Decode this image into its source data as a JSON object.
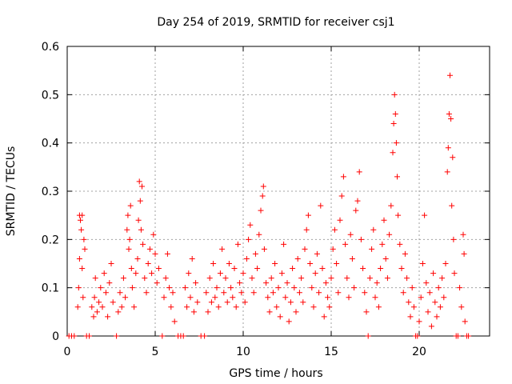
{
  "chart_data": {
    "type": "scatter",
    "title": "Day 254 of 2019, SRMTID for receiver csj1",
    "xlabel": "GPS time / hours",
    "ylabel": "SRMTID / TECUs",
    "xlim": [
      0,
      24
    ],
    "ylim": [
      0,
      0.6
    ],
    "xticks": [
      0,
      5,
      10,
      15,
      20
    ],
    "yticks": [
      0,
      0.1,
      0.2,
      0.3,
      0.4,
      0.5,
      0.6
    ],
    "xtick_labels": [
      "0",
      "5",
      "10",
      "15",
      "20"
    ],
    "ytick_labels": [
      "0",
      "0.1",
      "0.2",
      "0.3",
      "0.4",
      "0.5",
      "0.6"
    ],
    "grid": true,
    "marker": "+",
    "color": "#ff0000",
    "series": [
      {
        "name": "SRMTID",
        "points": [
          [
            0.1,
            0.0
          ],
          [
            0.25,
            0.0
          ],
          [
            0.4,
            0.0
          ],
          [
            0.6,
            0.06
          ],
          [
            0.65,
            0.1
          ],
          [
            0.7,
            0.16
          ],
          [
            0.75,
            0.24
          ],
          [
            0.8,
            0.22
          ],
          [
            0.85,
            0.14
          ],
          [
            0.9,
            0.08
          ],
          [
            0.95,
            0.2
          ],
          [
            1.0,
            0.18
          ],
          [
            0.7,
            0.25
          ],
          [
            0.85,
            0.25
          ],
          [
            1.1,
            0.0
          ],
          [
            1.25,
            0.0
          ],
          [
            1.4,
            0.06
          ],
          [
            1.5,
            0.04
          ],
          [
            1.55,
            0.08
          ],
          [
            1.6,
            0.12
          ],
          [
            1.7,
            0.05
          ],
          [
            1.8,
            0.07
          ],
          [
            1.9,
            0.1
          ],
          [
            2.0,
            0.06
          ],
          [
            2.1,
            0.13
          ],
          [
            2.2,
            0.09
          ],
          [
            2.3,
            0.04
          ],
          [
            2.4,
            0.11
          ],
          [
            2.5,
            0.15
          ],
          [
            2.6,
            0.07
          ],
          [
            2.8,
            0.0
          ],
          [
            2.9,
            0.05
          ],
          [
            3.0,
            0.09
          ],
          [
            3.1,
            0.06
          ],
          [
            3.2,
            0.12
          ],
          [
            3.3,
            0.08
          ],
          [
            3.4,
            0.22
          ],
          [
            3.45,
            0.25
          ],
          [
            3.5,
            0.18
          ],
          [
            3.55,
            0.2
          ],
          [
            3.6,
            0.27
          ],
          [
            3.65,
            0.14
          ],
          [
            3.7,
            0.1
          ],
          [
            3.8,
            0.06
          ],
          [
            3.9,
            0.13
          ],
          [
            4.0,
            0.16
          ],
          [
            4.05,
            0.24
          ],
          [
            4.1,
            0.32
          ],
          [
            4.15,
            0.28
          ],
          [
            4.2,
            0.22
          ],
          [
            4.25,
            0.31
          ],
          [
            4.3,
            0.19
          ],
          [
            4.4,
            0.12
          ],
          [
            4.5,
            0.09
          ],
          [
            4.6,
            0.15
          ],
          [
            4.7,
            0.18
          ],
          [
            4.8,
            0.13
          ],
          [
            4.9,
            0.21
          ],
          [
            5.0,
            0.17
          ],
          [
            5.1,
            0.11
          ],
          [
            5.2,
            0.14
          ],
          [
            5.4,
            0.0
          ],
          [
            5.5,
            0.08
          ],
          [
            5.6,
            0.12
          ],
          [
            5.7,
            0.17
          ],
          [
            5.8,
            0.1
          ],
          [
            5.9,
            0.06
          ],
          [
            6.0,
            0.09
          ],
          [
            6.1,
            0.03
          ],
          [
            6.3,
            0.0
          ],
          [
            6.45,
            0.0
          ],
          [
            6.6,
            0.0
          ],
          [
            6.7,
            0.1
          ],
          [
            6.8,
            0.06
          ],
          [
            6.9,
            0.13
          ],
          [
            7.0,
            0.08
          ],
          [
            7.1,
            0.16
          ],
          [
            7.2,
            0.05
          ],
          [
            7.3,
            0.11
          ],
          [
            7.4,
            0.07
          ],
          [
            7.6,
            0.0
          ],
          [
            7.8,
            0.0
          ],
          [
            7.9,
            0.09
          ],
          [
            8.0,
            0.05
          ],
          [
            8.1,
            0.12
          ],
          [
            8.2,
            0.07
          ],
          [
            8.3,
            0.15
          ],
          [
            8.4,
            0.08
          ],
          [
            8.5,
            0.1
          ],
          [
            8.6,
            0.06
          ],
          [
            8.7,
            0.13
          ],
          [
            8.8,
            0.18
          ],
          [
            8.9,
            0.09
          ],
          [
            9.0,
            0.12
          ],
          [
            9.1,
            0.07
          ],
          [
            9.2,
            0.15
          ],
          [
            9.3,
            0.1
          ],
          [
            9.4,
            0.08
          ],
          [
            9.5,
            0.14
          ],
          [
            9.6,
            0.06
          ],
          [
            9.7,
            0.19
          ],
          [
            9.8,
            0.11
          ],
          [
            9.9,
            0.09
          ],
          [
            10.0,
            0.13
          ],
          [
            10.1,
            0.07
          ],
          [
            10.2,
            0.16
          ],
          [
            10.3,
            0.2
          ],
          [
            10.4,
            0.23
          ],
          [
            10.5,
            0.12
          ],
          [
            10.6,
            0.09
          ],
          [
            10.7,
            0.17
          ],
          [
            10.8,
            0.14
          ],
          [
            10.9,
            0.21
          ],
          [
            11.0,
            0.26
          ],
          [
            11.1,
            0.29
          ],
          [
            11.15,
            0.31
          ],
          [
            11.2,
            0.18
          ],
          [
            11.3,
            0.11
          ],
          [
            11.4,
            0.08
          ],
          [
            11.5,
            0.05
          ],
          [
            11.6,
            0.12
          ],
          [
            11.7,
            0.09
          ],
          [
            11.8,
            0.15
          ],
          [
            11.9,
            0.06
          ],
          [
            12.0,
            0.1
          ],
          [
            12.1,
            0.04
          ],
          [
            12.2,
            0.13
          ],
          [
            12.3,
            0.19
          ],
          [
            12.4,
            0.08
          ],
          [
            12.5,
            0.11
          ],
          [
            12.6,
            0.03
          ],
          [
            12.7,
            0.07
          ],
          [
            12.8,
            0.14
          ],
          [
            12.9,
            0.1
          ],
          [
            13.0,
            0.05
          ],
          [
            13.1,
            0.16
          ],
          [
            13.2,
            0.09
          ],
          [
            13.3,
            0.12
          ],
          [
            13.4,
            0.07
          ],
          [
            13.5,
            0.18
          ],
          [
            13.6,
            0.22
          ],
          [
            13.7,
            0.25
          ],
          [
            13.8,
            0.15
          ],
          [
            13.9,
            0.1
          ],
          [
            14.0,
            0.06
          ],
          [
            14.1,
            0.13
          ],
          [
            14.2,
            0.17
          ],
          [
            14.3,
            0.09
          ],
          [
            14.4,
            0.27
          ],
          [
            14.5,
            0.14
          ],
          [
            14.6,
            0.04
          ],
          [
            14.7,
            0.11
          ],
          [
            14.8,
            0.08
          ],
          [
            14.9,
            0.06
          ],
          [
            15.0,
            0.12
          ],
          [
            15.1,
            0.18
          ],
          [
            15.2,
            0.22
          ],
          [
            15.3,
            0.15
          ],
          [
            15.4,
            0.09
          ],
          [
            15.5,
            0.24
          ],
          [
            15.6,
            0.29
          ],
          [
            15.7,
            0.33
          ],
          [
            15.8,
            0.19
          ],
          [
            15.9,
            0.12
          ],
          [
            16.0,
            0.08
          ],
          [
            16.1,
            0.21
          ],
          [
            16.2,
            0.16
          ],
          [
            16.3,
            0.1
          ],
          [
            16.4,
            0.26
          ],
          [
            16.5,
            0.28
          ],
          [
            16.6,
            0.34
          ],
          [
            16.7,
            0.2
          ],
          [
            16.8,
            0.14
          ],
          [
            16.9,
            0.09
          ],
          [
            17.0,
            0.05
          ],
          [
            17.1,
            0.0
          ],
          [
            17.2,
            0.12
          ],
          [
            17.3,
            0.18
          ],
          [
            17.4,
            0.22
          ],
          [
            17.5,
            0.08
          ],
          [
            17.6,
            0.11
          ],
          [
            17.7,
            0.06
          ],
          [
            17.8,
            0.14
          ],
          [
            17.9,
            0.19
          ],
          [
            18.0,
            0.24
          ],
          [
            18.1,
            0.16
          ],
          [
            18.2,
            0.12
          ],
          [
            18.3,
            0.21
          ],
          [
            18.4,
            0.27
          ],
          [
            18.5,
            0.38
          ],
          [
            18.55,
            0.44
          ],
          [
            18.6,
            0.5
          ],
          [
            18.65,
            0.46
          ],
          [
            18.7,
            0.4
          ],
          [
            18.75,
            0.33
          ],
          [
            18.8,
            0.25
          ],
          [
            18.9,
            0.19
          ],
          [
            19.0,
            0.14
          ],
          [
            19.1,
            0.09
          ],
          [
            19.2,
            0.17
          ],
          [
            19.3,
            0.12
          ],
          [
            19.4,
            0.07
          ],
          [
            19.5,
            0.04
          ],
          [
            19.6,
            0.1
          ],
          [
            19.7,
            0.06
          ],
          [
            19.8,
            0.0
          ],
          [
            19.9,
            0.0
          ],
          [
            20.0,
            0.03
          ],
          [
            20.1,
            0.08
          ],
          [
            20.2,
            0.15
          ],
          [
            20.3,
            0.25
          ],
          [
            20.4,
            0.11
          ],
          [
            20.5,
            0.05
          ],
          [
            20.6,
            0.09
          ],
          [
            20.7,
            0.02
          ],
          [
            20.8,
            0.13
          ],
          [
            20.9,
            0.07
          ],
          [
            21.0,
            0.04
          ],
          [
            21.1,
            0.1
          ],
          [
            21.2,
            0.06
          ],
          [
            21.3,
            0.12
          ],
          [
            21.4,
            0.08
          ],
          [
            21.5,
            0.15
          ],
          [
            21.6,
            0.34
          ],
          [
            21.65,
            0.39
          ],
          [
            21.7,
            0.46
          ],
          [
            21.75,
            0.54
          ],
          [
            21.8,
            0.45
          ],
          [
            21.85,
            0.27
          ],
          [
            21.9,
            0.37
          ],
          [
            21.95,
            0.2
          ],
          [
            22.0,
            0.13
          ],
          [
            22.1,
            0.0
          ],
          [
            22.2,
            0.0
          ],
          [
            22.3,
            0.1
          ],
          [
            22.4,
            0.06
          ],
          [
            22.5,
            0.21
          ],
          [
            22.55,
            0.17
          ],
          [
            22.6,
            0.03
          ],
          [
            22.7,
            0.0
          ],
          [
            22.8,
            0.0
          ]
        ]
      }
    ]
  }
}
